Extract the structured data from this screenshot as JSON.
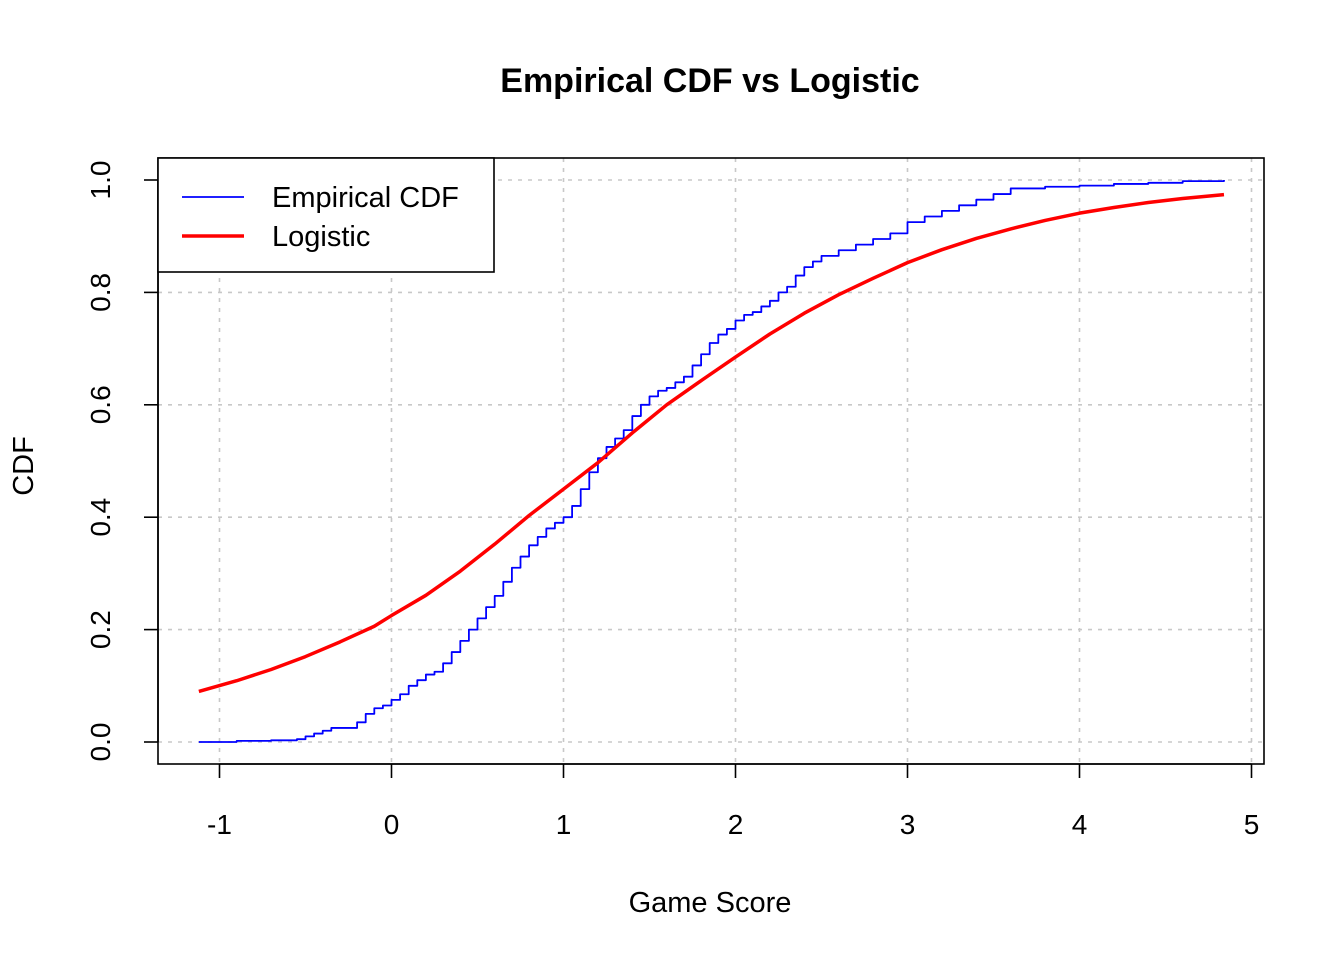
{
  "chart_data": {
    "type": "line",
    "title": "Empirical CDF vs Logistic",
    "xlabel": "Game Score",
    "ylabel": "CDF",
    "xlim": [
      -1.12,
      4.84
    ],
    "ylim": [
      0,
      1
    ],
    "x_ticks": [
      -1,
      0,
      1,
      2,
      3,
      4,
      5
    ],
    "x_tick_labels": [
      "-1",
      "0",
      "1",
      "2",
      "3",
      "4",
      "5"
    ],
    "y_ticks": [
      0,
      0.2,
      0.4,
      0.6,
      0.8,
      1.0
    ],
    "y_tick_labels": [
      "0.0",
      "0.2",
      "0.4",
      "0.6",
      "0.8",
      "1.0"
    ],
    "grid": true,
    "legend_position": "top-left",
    "series": [
      {
        "name": "Empirical CDF",
        "color": "#0000ff",
        "style": "step",
        "x": [
          -1.12,
          -0.9,
          -0.7,
          -0.55,
          -0.5,
          -0.45,
          -0.4,
          -0.35,
          -0.3,
          -0.2,
          -0.15,
          -0.1,
          -0.05,
          0.0,
          0.05,
          0.1,
          0.15,
          0.2,
          0.25,
          0.3,
          0.35,
          0.4,
          0.45,
          0.5,
          0.55,
          0.6,
          0.65,
          0.7,
          0.75,
          0.8,
          0.85,
          0.9,
          0.95,
          1.0,
          1.05,
          1.1,
          1.15,
          1.2,
          1.25,
          1.3,
          1.35,
          1.4,
          1.45,
          1.5,
          1.55,
          1.6,
          1.65,
          1.7,
          1.75,
          1.8,
          1.85,
          1.9,
          1.95,
          2.0,
          2.05,
          2.1,
          2.15,
          2.2,
          2.25,
          2.3,
          2.35,
          2.4,
          2.45,
          2.5,
          2.6,
          2.7,
          2.8,
          2.9,
          3.0,
          3.1,
          3.2,
          3.3,
          3.4,
          3.5,
          3.6,
          3.8,
          4.0,
          4.2,
          4.4,
          4.6,
          4.84
        ],
        "y": [
          0.0,
          0.002,
          0.003,
          0.005,
          0.01,
          0.015,
          0.02,
          0.025,
          0.025,
          0.035,
          0.05,
          0.06,
          0.065,
          0.075,
          0.085,
          0.1,
          0.11,
          0.12,
          0.125,
          0.14,
          0.16,
          0.18,
          0.2,
          0.22,
          0.24,
          0.26,
          0.285,
          0.31,
          0.33,
          0.35,
          0.365,
          0.38,
          0.39,
          0.4,
          0.42,
          0.45,
          0.48,
          0.505,
          0.525,
          0.54,
          0.555,
          0.58,
          0.6,
          0.615,
          0.625,
          0.63,
          0.64,
          0.65,
          0.67,
          0.69,
          0.71,
          0.725,
          0.735,
          0.75,
          0.76,
          0.765,
          0.775,
          0.785,
          0.8,
          0.81,
          0.83,
          0.845,
          0.855,
          0.865,
          0.875,
          0.885,
          0.895,
          0.905,
          0.925,
          0.935,
          0.945,
          0.955,
          0.965,
          0.975,
          0.985,
          0.988,
          0.99,
          0.993,
          0.995,
          0.998,
          1.0
        ]
      },
      {
        "name": "Logistic",
        "color": "#ff0000",
        "style": "line",
        "x": [
          -1.12,
          -0.9,
          -0.7,
          -0.5,
          -0.3,
          -0.1,
          0.0,
          0.2,
          0.4,
          0.6,
          0.8,
          1.0,
          1.2,
          1.4,
          1.6,
          1.8,
          2.0,
          2.2,
          2.4,
          2.6,
          2.8,
          3.0,
          3.2,
          3.4,
          3.6,
          3.8,
          4.0,
          4.2,
          4.4,
          4.6,
          4.84
        ],
        "y": [
          0.09,
          0.109,
          0.129,
          0.152,
          0.178,
          0.206,
          0.225,
          0.261,
          0.304,
          0.352,
          0.403,
          0.45,
          0.497,
          0.55,
          0.6,
          0.643,
          0.685,
          0.726,
          0.763,
          0.796,
          0.825,
          0.853,
          0.876,
          0.896,
          0.913,
          0.928,
          0.941,
          0.951,
          0.96,
          0.967,
          0.974
        ]
      }
    ]
  }
}
